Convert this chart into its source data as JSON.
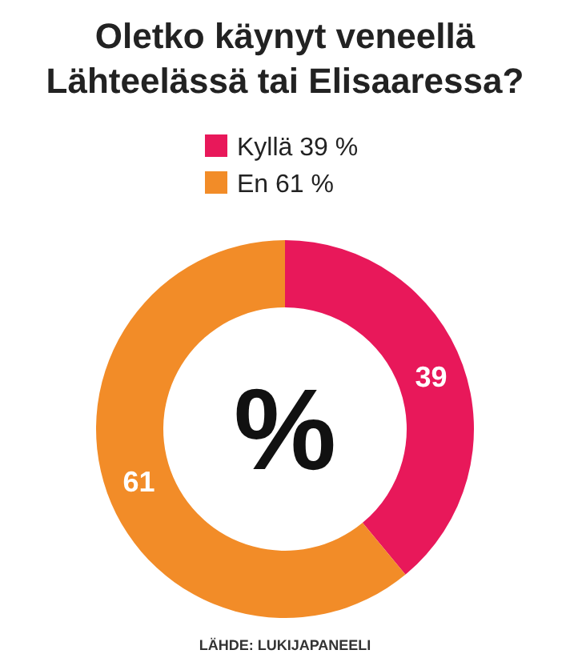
{
  "chart_data": {
    "type": "donut",
    "title": "Oletko käynyt veneellä Lähteelässä tai Elisaaressa?",
    "categories": [
      "Kyllä 39 %",
      "En 61 %"
    ],
    "values": [
      39,
      61
    ],
    "colors": [
      "#e8185a",
      "#f28c28"
    ],
    "data_labels": true,
    "legend": "top",
    "annotations": [
      "%",
      "LÄHDE: LUKIJAPANEELI"
    ]
  }
}
